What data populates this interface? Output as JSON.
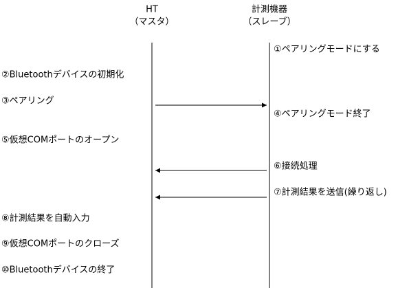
{
  "participants": [
    {
      "name": "HT",
      "role": "（マスタ）"
    },
    {
      "name": "計測機器",
      "role": "（スレーブ）"
    }
  ],
  "steps": [
    "①ペアリングモードにする",
    "②Bluetoothデバイスの初期化",
    "③ペアリング",
    "④ペアリングモード終了",
    "⑤仮想COMポートのオープン",
    "⑥接続処理",
    "⑦計測結果を送信(繰り返し)",
    "⑧計測結果を自動入力",
    "⑨仮想COMポートのクローズ",
    "⑩Bluetoothデバイスの終了"
  ]
}
